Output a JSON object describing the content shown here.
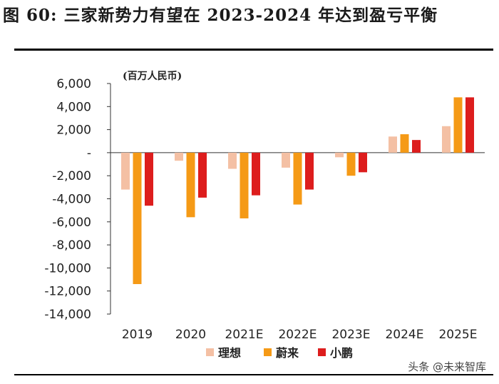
{
  "title": "图 60: 三家新势力有望在 2023-2024 年达到盈亏平衡",
  "watermark": "头条 @未来智库",
  "chart_data": {
    "type": "bar",
    "title": "图 60: 三家新势力有望在 2023-2024 年达到盈亏平衡",
    "ylabel": "(百万人民币)",
    "xlabel": "",
    "categories": [
      "2019",
      "2020",
      "2021E",
      "2022E",
      "2023E",
      "2024E",
      "2025E"
    ],
    "ylim": [
      -14000,
      6000
    ],
    "yticks": [
      6000,
      4000,
      2000,
      0,
      -2000,
      -4000,
      -6000,
      -8000,
      -10000,
      -12000,
      -14000
    ],
    "ytick_labels": [
      "6,000",
      "4,000",
      "2,000",
      "-",
      "-2,000",
      "-4,000",
      "-6,000",
      "-8,000",
      "-10,000",
      "-12,000",
      "-14,000"
    ],
    "legend_position": "bottom",
    "series": [
      {
        "name": "理想",
        "color": "#f4c0a4",
        "values": [
          -3200,
          -700,
          -1400,
          -1300,
          -400,
          1400,
          2300
        ]
      },
      {
        "name": "蔚来",
        "color": "#f59a16",
        "values": [
          -11400,
          -5600,
          -5700,
          -4500,
          -2000,
          1600,
          4800
        ]
      },
      {
        "name": "小鹏",
        "color": "#dd1d1d",
        "values": [
          -4600,
          -3900,
          -3700,
          -3200,
          -1700,
          1100,
          4800
        ]
      }
    ]
  }
}
